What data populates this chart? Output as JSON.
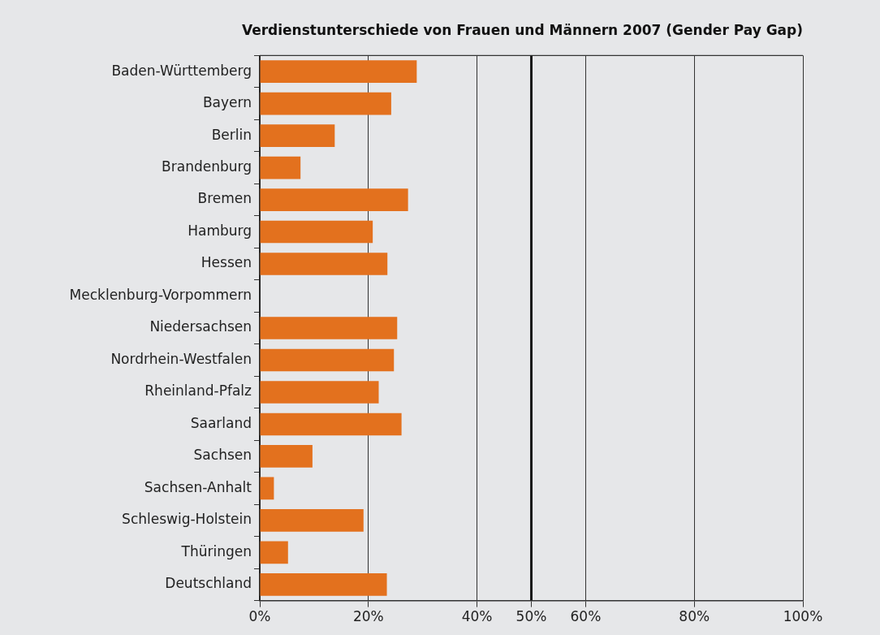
{
  "chart_data": {
    "type": "bar",
    "orientation": "horizontal",
    "title": "Verdienstunterschiede von Frauen und Männern 2007 (Gender Pay Gap)",
    "categories": [
      "Baden-Württemberg",
      "Bayern",
      "Berlin",
      "Brandenburg",
      "Bremen",
      "Hamburg",
      "Hessen",
      "Mecklenburg-Vorpommern",
      "Niedersachsen",
      "Nordrhein-Westfalen",
      "Rheinland-Pfalz",
      "Saarland",
      "Sachsen",
      "Sachsen-Anhalt",
      "Schleswig-Holstein",
      "Thüringen",
      "Deutschland"
    ],
    "values": [
      28.9,
      24.2,
      13.8,
      7.5,
      27.3,
      20.8,
      23.5,
      null,
      25.3,
      24.7,
      21.9,
      26.1,
      9.7,
      2.6,
      19.1,
      5.2,
      23.4
    ],
    "color": "#e3711e",
    "xlim": [
      0,
      100
    ],
    "xticks": [
      {
        "value": 0,
        "label": "0%"
      },
      {
        "value": 20,
        "label": "20%"
      },
      {
        "value": 40,
        "label": "40%"
      },
      {
        "value": 50,
        "label": "50%"
      },
      {
        "value": 60,
        "label": "60%"
      },
      {
        "value": 80,
        "label": "80%"
      },
      {
        "value": 100,
        "label": "100%"
      }
    ],
    "ref_lines": [
      {
        "axis": "x",
        "value": 50,
        "color": "#1a1a1a"
      }
    ],
    "grid": "x",
    "legend": false
  }
}
